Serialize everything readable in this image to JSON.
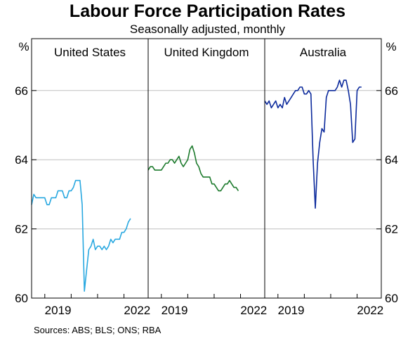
{
  "chart_data": {
    "type": "line",
    "title": "Labour Force Participation Rates",
    "subtitle": "Seasonally adjusted, monthly",
    "ylabel": "%",
    "ylim": [
      60,
      67.5
    ],
    "yticks": [
      60,
      62,
      64,
      66
    ],
    "xlim": [
      "2018-07",
      "2022-12"
    ],
    "xticks": [
      {
        "label": "2019",
        "pos": "2019-07"
      },
      {
        "label": "2022",
        "pos": "2022-07"
      }
    ],
    "grid": true,
    "source": "Sources: ABS; BLS; ONS; RBA",
    "panels": [
      {
        "title": "United States",
        "color": "#29a8e0",
        "series": [
          {
            "x": "2018-07",
            "y": 62.7
          },
          {
            "x": "2018-08",
            "y": 63.0
          },
          {
            "x": "2018-09",
            "y": 62.9
          },
          {
            "x": "2018-10",
            "y": 62.9
          },
          {
            "x": "2018-11",
            "y": 62.9
          },
          {
            "x": "2018-12",
            "y": 62.9
          },
          {
            "x": "2019-01",
            "y": 62.9
          },
          {
            "x": "2019-02",
            "y": 62.7
          },
          {
            "x": "2019-03",
            "y": 62.7
          },
          {
            "x": "2019-04",
            "y": 62.9
          },
          {
            "x": "2019-05",
            "y": 62.9
          },
          {
            "x": "2019-06",
            "y": 62.9
          },
          {
            "x": "2019-07",
            "y": 63.1
          },
          {
            "x": "2019-08",
            "y": 63.1
          },
          {
            "x": "2019-09",
            "y": 63.1
          },
          {
            "x": "2019-10",
            "y": 62.9
          },
          {
            "x": "2019-11",
            "y": 62.9
          },
          {
            "x": "2019-12",
            "y": 63.1
          },
          {
            "x": "2020-01",
            "y": 63.1
          },
          {
            "x": "2020-02",
            "y": 63.2
          },
          {
            "x": "2020-03",
            "y": 63.4
          },
          {
            "x": "2020-04",
            "y": 63.4
          },
          {
            "x": "2020-05",
            "y": 63.4
          },
          {
            "x": "2020-06",
            "y": 62.7
          },
          {
            "x": "2020-07",
            "y": 60.2
          },
          {
            "x": "2020-08",
            "y": 60.8
          },
          {
            "x": "2020-09",
            "y": 61.4
          },
          {
            "x": "2020-10",
            "y": 61.5
          },
          {
            "x": "2020-11",
            "y": 61.7
          },
          {
            "x": "2020-12",
            "y": 61.4
          },
          {
            "x": "2021-01",
            "y": 61.5
          },
          {
            "x": "2021-02",
            "y": 61.5
          },
          {
            "x": "2021-03",
            "y": 61.4
          },
          {
            "x": "2021-04",
            "y": 61.5
          },
          {
            "x": "2021-05",
            "y": 61.4
          },
          {
            "x": "2021-06",
            "y": 61.5
          },
          {
            "x": "2021-07",
            "y": 61.7
          },
          {
            "x": "2021-08",
            "y": 61.6
          },
          {
            "x": "2021-09",
            "y": 61.7
          },
          {
            "x": "2021-10",
            "y": 61.7
          },
          {
            "x": "2021-11",
            "y": 61.7
          },
          {
            "x": "2021-12",
            "y": 61.9
          },
          {
            "x": "2022-01",
            "y": 61.9
          },
          {
            "x": "2022-02",
            "y": 62.0
          },
          {
            "x": "2022-03",
            "y": 62.2
          },
          {
            "x": "2022-04",
            "y": 62.3
          }
        ]
      },
      {
        "title": "United Kingdom",
        "color": "#1c7a2c",
        "series": [
          {
            "x": "2018-07",
            "y": 63.7
          },
          {
            "x": "2018-08",
            "y": 63.8
          },
          {
            "x": "2018-09",
            "y": 63.8
          },
          {
            "x": "2018-10",
            "y": 63.7
          },
          {
            "x": "2018-11",
            "y": 63.7
          },
          {
            "x": "2018-12",
            "y": 63.7
          },
          {
            "x": "2019-01",
            "y": 63.7
          },
          {
            "x": "2019-02",
            "y": 63.8
          },
          {
            "x": "2019-03",
            "y": 63.9
          },
          {
            "x": "2019-04",
            "y": 63.9
          },
          {
            "x": "2019-05",
            "y": 64.0
          },
          {
            "x": "2019-06",
            "y": 64.0
          },
          {
            "x": "2019-07",
            "y": 63.9
          },
          {
            "x": "2019-08",
            "y": 64.0
          },
          {
            "x": "2019-09",
            "y": 64.1
          },
          {
            "x": "2019-10",
            "y": 63.9
          },
          {
            "x": "2019-11",
            "y": 63.8
          },
          {
            "x": "2019-12",
            "y": 63.9
          },
          {
            "x": "2020-01",
            "y": 64.0
          },
          {
            "x": "2020-02",
            "y": 64.3
          },
          {
            "x": "2020-03",
            "y": 64.4
          },
          {
            "x": "2020-04",
            "y": 64.2
          },
          {
            "x": "2020-05",
            "y": 63.9
          },
          {
            "x": "2020-06",
            "y": 63.8
          },
          {
            "x": "2020-07",
            "y": 63.6
          },
          {
            "x": "2020-08",
            "y": 63.5
          },
          {
            "x": "2020-09",
            "y": 63.5
          },
          {
            "x": "2020-10",
            "y": 63.5
          },
          {
            "x": "2020-11",
            "y": 63.5
          },
          {
            "x": "2020-12",
            "y": 63.3
          },
          {
            "x": "2021-01",
            "y": 63.3
          },
          {
            "x": "2021-02",
            "y": 63.2
          },
          {
            "x": "2021-03",
            "y": 63.1
          },
          {
            "x": "2021-04",
            "y": 63.1
          },
          {
            "x": "2021-05",
            "y": 63.2
          },
          {
            "x": "2021-06",
            "y": 63.3
          },
          {
            "x": "2021-07",
            "y": 63.3
          },
          {
            "x": "2021-08",
            "y": 63.4
          },
          {
            "x": "2021-09",
            "y": 63.3
          },
          {
            "x": "2021-10",
            "y": 63.2
          },
          {
            "x": "2021-11",
            "y": 63.2
          },
          {
            "x": "2021-12",
            "y": 63.1
          }
        ]
      },
      {
        "title": "Australia",
        "color": "#0c2a9c",
        "series": [
          {
            "x": "2018-07",
            "y": 65.7
          },
          {
            "x": "2018-08",
            "y": 65.6
          },
          {
            "x": "2018-09",
            "y": 65.7
          },
          {
            "x": "2018-10",
            "y": 65.5
          },
          {
            "x": "2018-11",
            "y": 65.6
          },
          {
            "x": "2018-12",
            "y": 65.7
          },
          {
            "x": "2019-01",
            "y": 65.5
          },
          {
            "x": "2019-02",
            "y": 65.6
          },
          {
            "x": "2019-03",
            "y": 65.5
          },
          {
            "x": "2019-04",
            "y": 65.8
          },
          {
            "x": "2019-05",
            "y": 65.6
          },
          {
            "x": "2019-06",
            "y": 65.7
          },
          {
            "x": "2019-07",
            "y": 65.8
          },
          {
            "x": "2019-08",
            "y": 65.9
          },
          {
            "x": "2019-09",
            "y": 66.0
          },
          {
            "x": "2019-10",
            "y": 66.0
          },
          {
            "x": "2019-11",
            "y": 66.1
          },
          {
            "x": "2019-12",
            "y": 66.1
          },
          {
            "x": "2020-01",
            "y": 65.9
          },
          {
            "x": "2020-02",
            "y": 65.9
          },
          {
            "x": "2020-03",
            "y": 66.0
          },
          {
            "x": "2020-04",
            "y": 65.9
          },
          {
            "x": "2020-05",
            "y": 64.0
          },
          {
            "x": "2020-06",
            "y": 62.6
          },
          {
            "x": "2020-07",
            "y": 63.9
          },
          {
            "x": "2020-08",
            "y": 64.5
          },
          {
            "x": "2020-09",
            "y": 64.9
          },
          {
            "x": "2020-10",
            "y": 64.8
          },
          {
            "x": "2020-11",
            "y": 65.8
          },
          {
            "x": "2020-12",
            "y": 66.0
          },
          {
            "x": "2021-01",
            "y": 66.0
          },
          {
            "x": "2021-02",
            "y": 66.0
          },
          {
            "x": "2021-03",
            "y": 66.0
          },
          {
            "x": "2021-04",
            "y": 66.1
          },
          {
            "x": "2021-05",
            "y": 66.3
          },
          {
            "x": "2021-06",
            "y": 66.1
          },
          {
            "x": "2021-07",
            "y": 66.3
          },
          {
            "x": "2021-08",
            "y": 66.3
          },
          {
            "x": "2021-09",
            "y": 66.0
          },
          {
            "x": "2021-10",
            "y": 65.6
          },
          {
            "x": "2021-11",
            "y": 64.5
          },
          {
            "x": "2021-12",
            "y": 64.6
          },
          {
            "x": "2022-01",
            "y": 66.0
          },
          {
            "x": "2022-02",
            "y": 66.1
          },
          {
            "x": "2022-03",
            "y": 66.1
          }
        ]
      }
    ]
  }
}
